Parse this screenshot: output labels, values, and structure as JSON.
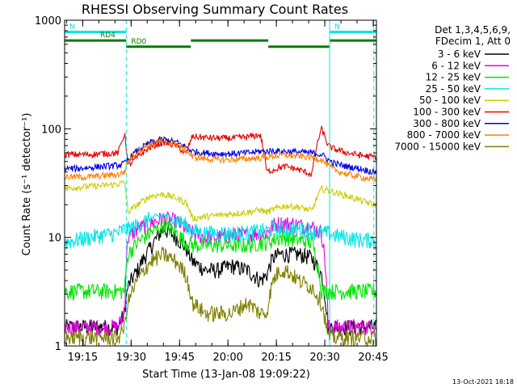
{
  "chart_data": {
    "type": "line",
    "title": "RHESSI Observing Summary Count Rates",
    "xlabel": "Start Time (13-Jan-08 19:09:22)",
    "ylabel": "Count Rate (s⁻¹ detector⁻¹)",
    "yscale": "log",
    "ylim": [
      1,
      1000
    ],
    "xlim_minutes_after_19_00": [
      9.4,
      48.0
    ],
    "x_ticks": [
      {
        "label": "19:15",
        "minute": 15
      },
      {
        "label": "19:30",
        "minute": 30
      },
      {
        "label": "19:45",
        "minute": 45
      },
      {
        "label": "20:00",
        "minute": 60
      },
      {
        "label": "20:15",
        "minute": 75
      },
      {
        "label": "20:30",
        "minute": 90
      },
      {
        "label": "20:45",
        "minute": 105
      }
    ],
    "y_ticks": [
      {
        "label": "1",
        "value": 1
      },
      {
        "label": "10",
        "value": 10
      },
      {
        "label": "100",
        "value": 100
      },
      {
        "label": "1000",
        "value": 1000
      }
    ],
    "legend": {
      "placement": "right",
      "header": [
        "Det 1,3,4,5,6,9,",
        "FDecim 1, Att 0"
      ]
    },
    "x_sample_minutes": [
      9.4,
      13,
      17,
      21,
      26,
      28,
      29,
      32,
      36,
      40,
      44,
      47,
      49,
      53,
      57,
      61,
      66,
      70,
      72,
      74,
      76,
      78,
      82,
      86,
      89,
      91,
      93,
      97,
      101,
      105,
      106
    ],
    "series": [
      {
        "name": "3 - 6 keV",
        "color": "#000000",
        "values": [
          1.5,
          1.5,
          1.5,
          1.5,
          1.5,
          2,
          3.5,
          5,
          8,
          12,
          10,
          8,
          6,
          5,
          5,
          5.5,
          5,
          4,
          4.5,
          6.5,
          7,
          7,
          7,
          6.5,
          4.5,
          1.5,
          1.5,
          1.5,
          1.5,
          1.5,
          1.5
        ]
      },
      {
        "name": "6 - 12 keV",
        "color": "#e600e6",
        "values": [
          1.5,
          1.5,
          1.5,
          1.5,
          1.5,
          2,
          10,
          12,
          13.5,
          15,
          14,
          12,
          11,
          10,
          10,
          10.5,
          10.5,
          11,
          11,
          13,
          13.5,
          13.5,
          13,
          12.5,
          11,
          1.5,
          1.5,
          1.5,
          1.5,
          1.5,
          1.5
        ]
      },
      {
        "name": "12 - 25 keV",
        "color": "#00e600",
        "values": [
          3.2,
          3.2,
          3.2,
          3.2,
          3.2,
          3.2,
          7,
          9,
          11,
          13,
          11,
          9,
          8.5,
          8.5,
          8.5,
          8.5,
          8.5,
          9,
          9,
          9.5,
          10,
          10,
          9.5,
          9,
          3.2,
          3.2,
          3.2,
          3.2,
          3.2,
          3.2,
          3.2
        ]
      },
      {
        "name": "25 - 50 keV",
        "color": "#00e6e6",
        "values": [
          9,
          9.5,
          10,
          10.5,
          11,
          12,
          12,
          13,
          15,
          16,
          14.5,
          13,
          11.5,
          11,
          11,
          11,
          11,
          11.5,
          11.5,
          12,
          12,
          12,
          12,
          11.5,
          11,
          11,
          10.5,
          10,
          9.5,
          9.5,
          9
        ]
      },
      {
        "name": "50 - 100 keV",
        "color": "#cccc00",
        "values": [
          28,
          29,
          29.5,
          30,
          31,
          32,
          17,
          20,
          24,
          25,
          23,
          21,
          15,
          15.5,
          16,
          16.5,
          17,
          18,
          17,
          18,
          19,
          19.5,
          19,
          17.5,
          28,
          27,
          26,
          24,
          22,
          20,
          20
        ]
      },
      {
        "name": "100 - 300 keV",
        "color": "#e60000",
        "values": [
          58,
          58,
          58,
          59,
          60,
          90,
          45,
          55,
          68,
          75,
          70,
          58,
          85,
          83,
          82,
          82,
          84,
          88,
          40,
          42,
          44,
          45,
          42,
          38,
          100,
          70,
          65,
          60,
          57,
          55,
          55
        ]
      },
      {
        "name": "300 - 800 keV",
        "color": "#0000e6",
        "values": [
          43,
          43,
          44,
          45,
          46,
          48,
          52,
          63,
          75,
          80,
          75,
          68,
          62,
          60,
          59,
          59,
          60,
          62,
          62,
          63,
          62,
          62,
          61,
          60,
          58,
          52,
          48,
          45,
          43,
          40,
          40
        ]
      },
      {
        "name": "800 - 7000 keV",
        "color": "#ff7f00",
        "values": [
          36,
          36,
          36,
          37,
          38,
          40,
          50,
          62,
          72,
          78,
          72,
          64,
          55,
          53,
          52,
          52,
          53,
          54,
          55,
          56,
          57,
          57,
          56,
          55,
          52,
          46,
          42,
          38,
          36,
          34,
          34
        ]
      },
      {
        "name": "7000 - 15000 keV",
        "color": "#808000",
        "values": [
          1.2,
          1.2,
          1.2,
          1.2,
          1.2,
          1.5,
          2.5,
          4,
          6,
          7,
          6,
          4.5,
          2.5,
          2,
          2,
          2,
          2.5,
          2,
          2,
          4,
          5,
          5,
          4,
          3.5,
          2.5,
          1.2,
          1.2,
          1.2,
          1.2,
          1.2,
          1.2
        ]
      }
    ],
    "annotations": [
      {
        "text": "N",
        "color": "#00e6e6",
        "x_minutes": [
          9.4,
          28.5
        ],
        "level": 780
      },
      {
        "text": "N",
        "color": "#00e6e6",
        "x_minutes": [
          91.5,
          106
        ],
        "level": 780
      },
      {
        "text": "RD0",
        "color": "#008000",
        "x_minutes": [
          28.5,
          48.5
        ],
        "level": 570
      },
      {
        "text": "",
        "color": "#008000",
        "x_minutes": [
          48.5,
          72.5
        ],
        "level": 650
      },
      {
        "text": "",
        "color": "#008000",
        "x_minutes": [
          72.5,
          91.5
        ],
        "level": 570
      },
      {
        "text": "",
        "color": "#008000",
        "x_minutes": [
          91.5,
          106
        ],
        "level": 650
      },
      {
        "text": "RD4",
        "color": "#008000",
        "x_minutes": [
          9.4,
          28.5
        ],
        "level": 650
      }
    ],
    "vertical_markers_minutes": [
      {
        "minute": 28.5,
        "style": "dashed"
      },
      {
        "minute": 91.5,
        "style": "solid"
      },
      {
        "minute": 105.2,
        "style": "dashed"
      }
    ]
  },
  "footer": {
    "generated": "13-Oct-2021 18:18"
  }
}
